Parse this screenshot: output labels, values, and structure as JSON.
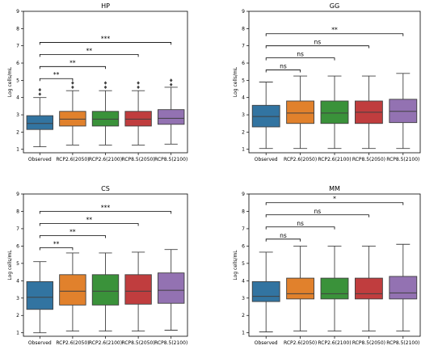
{
  "chart_data": [
    {
      "type": "box",
      "title": "HP",
      "ylabel": "Log cells/mL",
      "ylim": [
        0.8,
        9.0
      ],
      "yticks": [
        1,
        2,
        3,
        4,
        5,
        6,
        7,
        8,
        9
      ],
      "categories": [
        "Observed",
        "RCP2.6(2050)",
        "RCP2.6(2100)",
        "RCP8.5(2050)",
        "RCP8.5(2100)"
      ],
      "colors": [
        "#3274a1",
        "#e1812c",
        "#3a923a",
        "#c03d3e",
        "#9372b2"
      ],
      "boxes": [
        {
          "whislo": 1.15,
          "q1": 2.15,
          "med": 2.5,
          "q3": 2.95,
          "whishi": 4.0,
          "fliers": [
            4.2,
            4.45
          ]
        },
        {
          "whislo": 1.25,
          "q1": 2.35,
          "med": 2.75,
          "q3": 3.2,
          "whishi": 4.4,
          "fliers": [
            4.6,
            4.85
          ]
        },
        {
          "whislo": 1.25,
          "q1": 2.35,
          "med": 2.75,
          "q3": 3.2,
          "whishi": 4.4,
          "fliers": [
            4.6,
            4.85
          ]
        },
        {
          "whislo": 1.25,
          "q1": 2.35,
          "med": 2.75,
          "q3": 3.2,
          "whishi": 4.4,
          "fliers": [
            4.6,
            4.85
          ]
        },
        {
          "whislo": 1.3,
          "q1": 2.45,
          "med": 2.8,
          "q3": 3.3,
          "whishi": 4.6,
          "fliers": [
            4.75,
            5.0
          ]
        }
      ],
      "annotations": [
        {
          "from": 0,
          "to": 1,
          "y": 5.1,
          "label": "**"
        },
        {
          "from": 0,
          "to": 2,
          "y": 5.8,
          "label": "**"
        },
        {
          "from": 0,
          "to": 3,
          "y": 6.5,
          "label": "**"
        },
        {
          "from": 0,
          "to": 4,
          "y": 7.2,
          "label": "***"
        }
      ]
    },
    {
      "type": "box",
      "title": "GG",
      "ylabel": "Log cells/mL",
      "ylim": [
        0.8,
        9.0
      ],
      "yticks": [
        1,
        2,
        3,
        4,
        5,
        6,
        7,
        8,
        9
      ],
      "categories": [
        "Observed",
        "RCP2.6(2050)",
        "RCP2.6(2100)",
        "RCP8.5(2050)",
        "RCP8.5(2100)"
      ],
      "colors": [
        "#3274a1",
        "#e1812c",
        "#3a923a",
        "#c03d3e",
        "#9372b2"
      ],
      "boxes": [
        {
          "whislo": 1.05,
          "q1": 2.3,
          "med": 2.9,
          "q3": 3.55,
          "whishi": 4.9,
          "fliers": []
        },
        {
          "whislo": 1.05,
          "q1": 2.5,
          "med": 3.1,
          "q3": 3.8,
          "whishi": 5.25,
          "fliers": []
        },
        {
          "whislo": 1.05,
          "q1": 2.5,
          "med": 3.1,
          "q3": 3.8,
          "whishi": 5.25,
          "fliers": []
        },
        {
          "whislo": 1.05,
          "q1": 2.5,
          "med": 3.15,
          "q3": 3.8,
          "whishi": 5.25,
          "fliers": []
        },
        {
          "whislo": 1.05,
          "q1": 2.55,
          "med": 3.2,
          "q3": 3.9,
          "whishi": 5.4,
          "fliers": []
        }
      ],
      "annotations": [
        {
          "from": 0,
          "to": 1,
          "y": 5.6,
          "label": "ns"
        },
        {
          "from": 0,
          "to": 2,
          "y": 6.3,
          "label": "ns"
        },
        {
          "from": 0,
          "to": 3,
          "y": 7.0,
          "label": "ns"
        },
        {
          "from": 0,
          "to": 4,
          "y": 7.7,
          "label": "**"
        }
      ]
    },
    {
      "type": "box",
      "title": "CS",
      "ylabel": "Log cells/mL",
      "ylim": [
        0.8,
        9.0
      ],
      "yticks": [
        1,
        2,
        3,
        4,
        5,
        6,
        7,
        8,
        9
      ],
      "categories": [
        "Observed",
        "RCP2.6(2050)",
        "RCP2.6(2100)",
        "RCP8.5(2050)",
        "RCP8.5(2100)"
      ],
      "colors": [
        "#3274a1",
        "#e1812c",
        "#3a923a",
        "#c03d3e",
        "#9372b2"
      ],
      "boxes": [
        {
          "whislo": 1.0,
          "q1": 2.35,
          "med": 3.05,
          "q3": 3.95,
          "whishi": 5.1,
          "fliers": []
        },
        {
          "whislo": 1.1,
          "q1": 2.6,
          "med": 3.4,
          "q3": 4.35,
          "whishi": 5.6,
          "fliers": []
        },
        {
          "whislo": 1.1,
          "q1": 2.6,
          "med": 3.4,
          "q3": 4.35,
          "whishi": 5.6,
          "fliers": []
        },
        {
          "whislo": 1.1,
          "q1": 2.65,
          "med": 3.4,
          "q3": 4.35,
          "whishi": 5.65,
          "fliers": []
        },
        {
          "whislo": 1.15,
          "q1": 2.7,
          "med": 3.45,
          "q3": 4.45,
          "whishi": 5.8,
          "fliers": []
        }
      ],
      "annotations": [
        {
          "from": 0,
          "to": 1,
          "y": 5.9,
          "label": "**"
        },
        {
          "from": 0,
          "to": 2,
          "y": 6.6,
          "label": "**"
        },
        {
          "from": 0,
          "to": 3,
          "y": 7.3,
          "label": "**"
        },
        {
          "from": 0,
          "to": 4,
          "y": 8.0,
          "label": "***"
        }
      ]
    },
    {
      "type": "box",
      "title": "MM",
      "ylabel": "Log cells/mL",
      "ylim": [
        0.8,
        9.0
      ],
      "yticks": [
        1,
        2,
        3,
        4,
        5,
        6,
        7,
        8,
        9
      ],
      "categories": [
        "Observed",
        "RCP2.6(2050)",
        "RCP2.6(2100)",
        "RCP8.5(2050)",
        "RCP8.5(2100)"
      ],
      "colors": [
        "#3274a1",
        "#e1812c",
        "#3a923a",
        "#c03d3e",
        "#9372b2"
      ],
      "boxes": [
        {
          "whislo": 1.05,
          "q1": 2.8,
          "med": 3.1,
          "q3": 3.95,
          "whishi": 5.65,
          "fliers": []
        },
        {
          "whislo": 1.1,
          "q1": 2.95,
          "med": 3.25,
          "q3": 4.15,
          "whishi": 6.0,
          "fliers": []
        },
        {
          "whislo": 1.1,
          "q1": 2.95,
          "med": 3.25,
          "q3": 4.15,
          "whishi": 6.0,
          "fliers": []
        },
        {
          "whislo": 1.1,
          "q1": 2.95,
          "med": 3.25,
          "q3": 4.15,
          "whishi": 6.0,
          "fliers": []
        },
        {
          "whislo": 1.1,
          "q1": 2.95,
          "med": 3.3,
          "q3": 4.25,
          "whishi": 6.1,
          "fliers": []
        }
      ],
      "annotations": [
        {
          "from": 0,
          "to": 1,
          "y": 6.4,
          "label": "ns"
        },
        {
          "from": 0,
          "to": 2,
          "y": 7.1,
          "label": "ns"
        },
        {
          "from": 0,
          "to": 3,
          "y": 7.8,
          "label": "ns"
        },
        {
          "from": 0,
          "to": 4,
          "y": 8.5,
          "label": "*"
        }
      ]
    }
  ]
}
